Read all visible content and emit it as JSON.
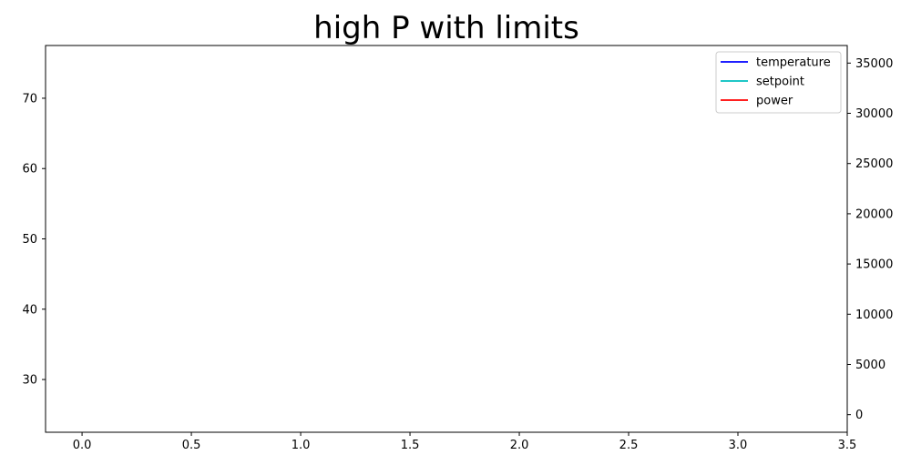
{
  "chart_data": {
    "type": "line",
    "title": "high P with limits",
    "xlabel": "",
    "ylabel": "",
    "y2label": "",
    "xlim": [
      -0.167,
      3.5
    ],
    "ylim": [
      22.5,
      77.5
    ],
    "y2lim": [
      -1750,
      36750
    ],
    "x_ticks": [
      0.0,
      0.5,
      1.0,
      1.5,
      2.0,
      2.5,
      3.0,
      3.5
    ],
    "x_tick_labels": [
      "0.0",
      "0.5",
      "1.0",
      "1.5",
      "2.0",
      "2.5",
      "3.0",
      "3.5"
    ],
    "y_ticks": [
      30,
      40,
      50,
      60,
      70
    ],
    "y_tick_labels": [
      "30",
      "40",
      "50",
      "60",
      "70"
    ],
    "y2_ticks": [
      0,
      5000,
      10000,
      15000,
      20000,
      25000,
      30000,
      35000
    ],
    "y2_tick_labels": [
      "0",
      "5000",
      "10000",
      "15000",
      "20000",
      "25000",
      "30000",
      "35000"
    ],
    "grid": false,
    "legend_position": "top-right",
    "series": [
      {
        "name": "temperature",
        "color": "#0000ff",
        "axis": "left",
        "x": [],
        "y": []
      },
      {
        "name": "setpoint",
        "color": "#00bfbf",
        "axis": "left",
        "x": [],
        "y": []
      },
      {
        "name": "power",
        "color": "#ff0000",
        "axis": "right",
        "x": [],
        "y": []
      }
    ]
  }
}
